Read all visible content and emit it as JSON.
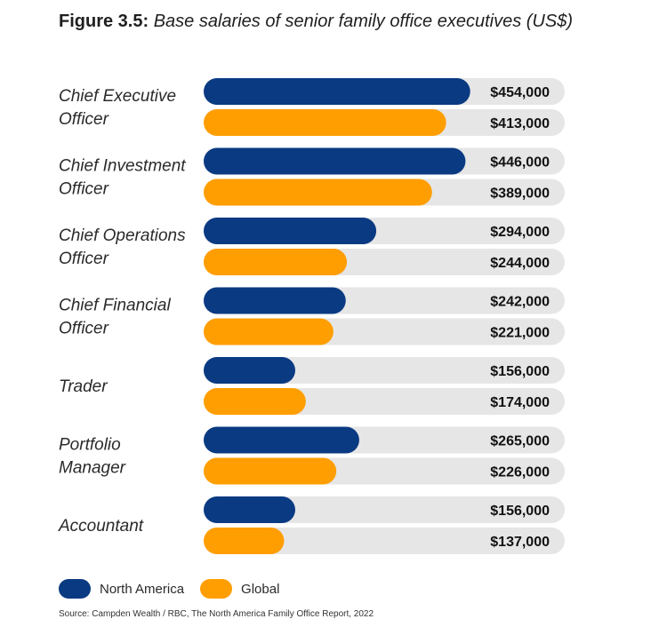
{
  "figure_label": "Figure 3.5:",
  "figure_caption": "Base salaries of senior family office executives (US$)",
  "colors": {
    "north_america": "#0a3a82",
    "global": "#ff9e00",
    "track": "#e6e6e6"
  },
  "legend": {
    "north_america": "North America",
    "global": "Global"
  },
  "source": "Source: Campden Wealth / RBC, The North America Family Office Report, 2022",
  "chart_data": {
    "type": "bar",
    "orientation": "horizontal",
    "title": "Figure 3.5: Base salaries of senior family office executives (US$)",
    "categories": [
      [
        "Chief Executive",
        "Officer"
      ],
      [
        "Chief Investment",
        "Officer"
      ],
      [
        "Chief Operations",
        "Officer"
      ],
      [
        "Chief Financial",
        "Officer"
      ],
      [
        "Trader"
      ],
      [
        "Portfolio",
        "Manager"
      ],
      [
        "Accountant"
      ]
    ],
    "series": [
      {
        "name": "North America",
        "values": [
          454000,
          446000,
          294000,
          242000,
          156000,
          265000,
          156000
        ],
        "labels": [
          "$454,000",
          "$446,000",
          "$294,000",
          "$242,000",
          "$156,000",
          "$265,000",
          "$156,000"
        ]
      },
      {
        "name": "Global",
        "values": [
          413000,
          389000,
          244000,
          221000,
          174000,
          226000,
          137000
        ],
        "labels": [
          "$413,000",
          "$389,000",
          "$244,000",
          "$221,000",
          "$174,000",
          "$226,000",
          "$137,000"
        ]
      }
    ],
    "xlim": [
      0,
      615000
    ],
    "xlabel": "",
    "ylabel": "",
    "grid": false,
    "legend_position": "bottom-left"
  }
}
